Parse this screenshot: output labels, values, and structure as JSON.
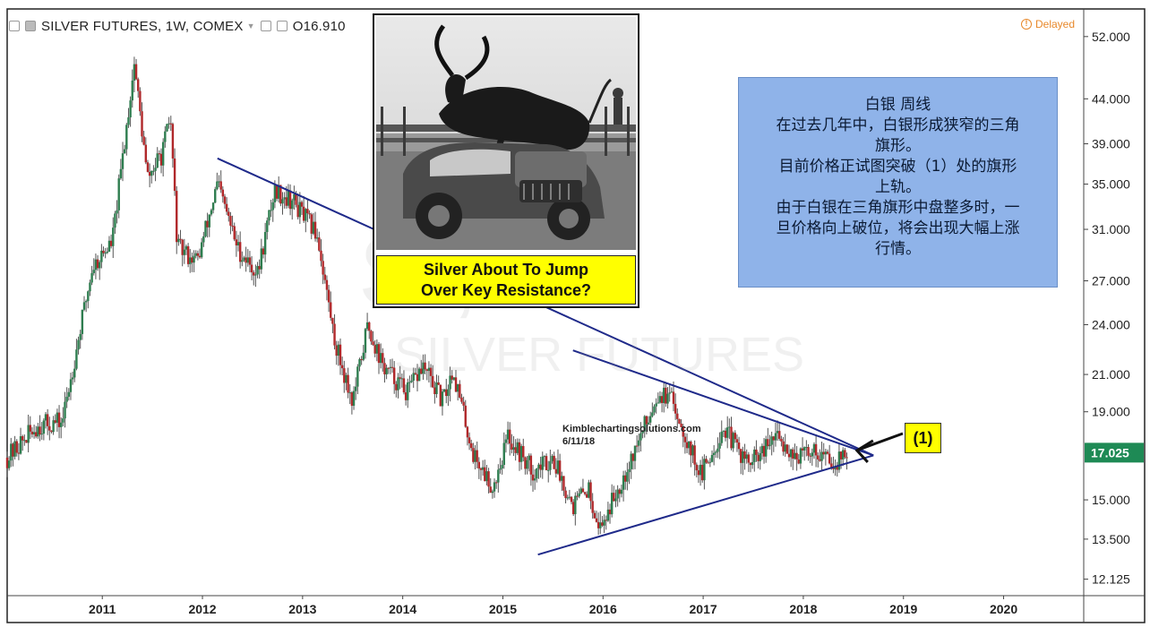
{
  "header": {
    "symbol_label": "SILVER FUTURES, 1W, COMEX",
    "price_label": "O16.910",
    "delayed_label": "Delayed"
  },
  "photo_caption": {
    "line1": "Silver About To Jump",
    "line2": "Over Key Resistance?"
  },
  "note_lines": [
    "白银  周线",
    "在过去几年中，白银形成狭窄的三角",
    "旗形。",
    "目前价格正试图突破（1）处的旗形",
    "上轨。",
    "由于白银在三角旗形中盘整多时，一",
    "旦价格向上破位，将会出现大幅上涨",
    "行情。"
  ],
  "marker_label": "(1)",
  "credit": {
    "site": "Kimblechartingsolutions.com",
    "date": "6/11/18"
  },
  "watermark": {
    "symbol": "SI, W",
    "name": "SILVER FUTURES"
  },
  "colors": {
    "up_candle": "#2e7d4f",
    "down_candle": "#b0282a",
    "trendline": "#1f2a8a",
    "last_price_bg": "#1e8a55",
    "callout_bg": "#8fb3e9",
    "highlight": "#ffff00"
  },
  "chart_data": {
    "type": "candlestick",
    "title": "SILVER FUTURES, 1W, COMEX",
    "price_axis_ticks": [
      "52.000",
      "44.000",
      "39.000",
      "35.000",
      "31.000",
      "27.000",
      "24.000",
      "21.000",
      "19.000",
      "17.025",
      "15.000",
      "13.500",
      "12.125"
    ],
    "price_axis_values": [
      52.0,
      44.0,
      39.0,
      35.0,
      31.0,
      27.0,
      24.0,
      21.0,
      19.0,
      15.0,
      13.5,
      12.125
    ],
    "last_price": 17.025,
    "last_price_label": "17.025",
    "time_axis_labels": [
      "2011",
      "2012",
      "2013",
      "2014",
      "2015",
      "2016",
      "2017",
      "2018",
      "2019",
      "2020"
    ],
    "time_axis_years": [
      2011,
      2012,
      2013,
      2014,
      2015,
      2016,
      2017,
      2018,
      2019,
      2020
    ],
    "y_scale": "log",
    "ylim": [
      11.6,
      56
    ],
    "xlim": [
      2010.05,
      2020.8
    ],
    "price_path": [
      {
        "t": 2010.05,
        "p": 16.8
      },
      {
        "t": 2010.35,
        "p": 18.3
      },
      {
        "t": 2010.6,
        "p": 18.5
      },
      {
        "t": 2010.9,
        "p": 28.0
      },
      {
        "t": 2011.1,
        "p": 30.0
      },
      {
        "t": 2011.32,
        "p": 48.5
      },
      {
        "t": 2011.45,
        "p": 35.5
      },
      {
        "t": 2011.6,
        "p": 38.0
      },
      {
        "t": 2011.68,
        "p": 42.0
      },
      {
        "t": 2011.75,
        "p": 29.5
      },
      {
        "t": 2011.95,
        "p": 28.5
      },
      {
        "t": 2012.15,
        "p": 35.0
      },
      {
        "t": 2012.35,
        "p": 29.5
      },
      {
        "t": 2012.55,
        "p": 27.5
      },
      {
        "t": 2012.72,
        "p": 34.5
      },
      {
        "t": 2012.9,
        "p": 33.5
      },
      {
        "t": 2013.15,
        "p": 30.5
      },
      {
        "t": 2013.32,
        "p": 23.0
      },
      {
        "t": 2013.5,
        "p": 19.5
      },
      {
        "t": 2013.65,
        "p": 24.0
      },
      {
        "t": 2013.8,
        "p": 21.5
      },
      {
        "t": 2014.05,
        "p": 20.0
      },
      {
        "t": 2014.2,
        "p": 21.5
      },
      {
        "t": 2014.4,
        "p": 19.5
      },
      {
        "t": 2014.5,
        "p": 21.3
      },
      {
        "t": 2014.7,
        "p": 17.0
      },
      {
        "t": 2014.9,
        "p": 15.5
      },
      {
        "t": 2015.05,
        "p": 17.8
      },
      {
        "t": 2015.3,
        "p": 16.2
      },
      {
        "t": 2015.5,
        "p": 16.8
      },
      {
        "t": 2015.7,
        "p": 14.8
      },
      {
        "t": 2015.85,
        "p": 15.5
      },
      {
        "t": 2015.97,
        "p": 13.9
      },
      {
        "t": 2016.15,
        "p": 15.5
      },
      {
        "t": 2016.35,
        "p": 17.5
      },
      {
        "t": 2016.55,
        "p": 20.0
      },
      {
        "t": 2016.7,
        "p": 19.5
      },
      {
        "t": 2016.85,
        "p": 17.5
      },
      {
        "t": 2016.98,
        "p": 16.0
      },
      {
        "t": 2017.2,
        "p": 18.2
      },
      {
        "t": 2017.45,
        "p": 16.5
      },
      {
        "t": 2017.6,
        "p": 17.0
      },
      {
        "t": 2017.72,
        "p": 17.8
      },
      {
        "t": 2017.95,
        "p": 16.8
      },
      {
        "t": 2018.1,
        "p": 17.2
      },
      {
        "t": 2018.3,
        "p": 16.6
      },
      {
        "t": 2018.44,
        "p": 17.03
      }
    ],
    "trendlines": [
      {
        "name": "upper-resistance",
        "from": {
          "t": 2012.15,
          "p": 37.5
        },
        "to": {
          "t": 2018.7,
          "p": 16.9
        }
      },
      {
        "name": "inner-resistance",
        "from": {
          "t": 2015.7,
          "p": 22.4
        },
        "to": {
          "t": 2018.7,
          "p": 16.9
        }
      },
      {
        "name": "lower-support",
        "from": {
          "t": 2015.35,
          "p": 12.95
        },
        "to": {
          "t": 2018.7,
          "p": 16.9
        }
      }
    ],
    "annotation": {
      "label": "(1)",
      "t": 2018.5,
      "p": 17.5
    }
  }
}
